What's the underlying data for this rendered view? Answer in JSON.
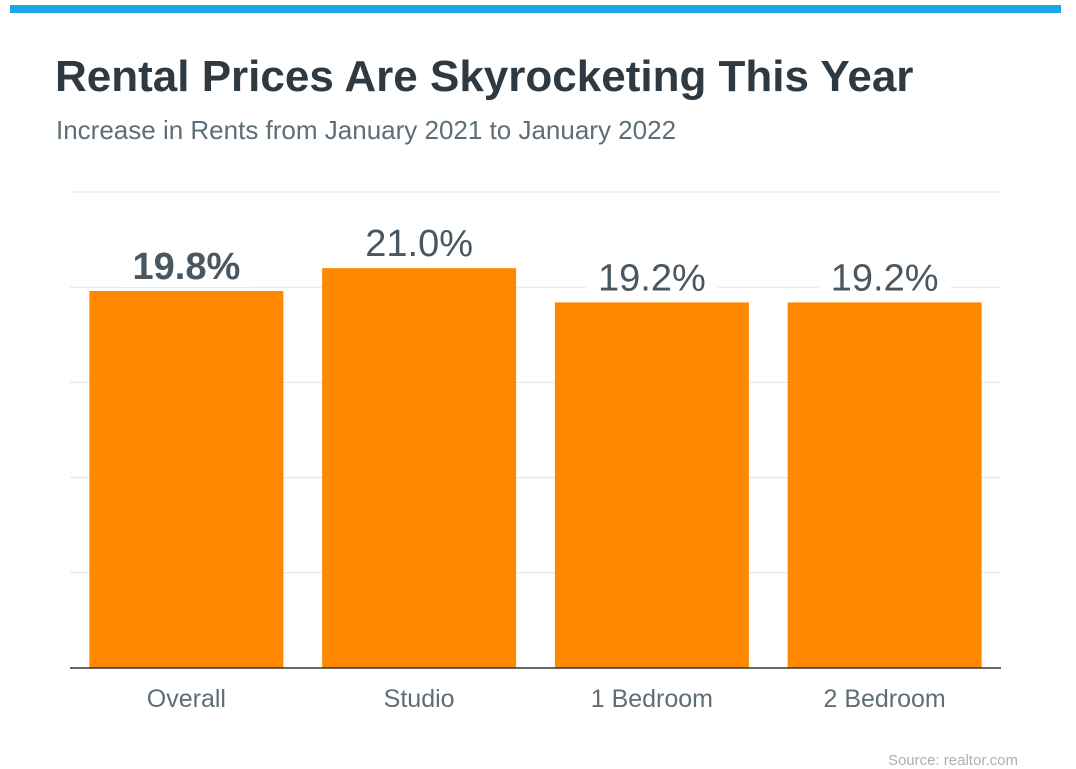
{
  "header": {
    "title": "Rental Prices Are Skyrocketing This Year",
    "subtitle": "Increase in Rents from January 2021 to January 2022",
    "accent_color": "#1aa7e6"
  },
  "footer": {
    "source": "Source: realtor.com"
  },
  "chart_data": {
    "type": "bar",
    "title": "Rental Prices Are Skyrocketing This Year",
    "subtitle": "Increase in Rents from January 2021 to January 2022",
    "categories": [
      "Overall",
      "Studio",
      "1 Bedroom",
      "2 Bedroom"
    ],
    "values": [
      19.8,
      21.0,
      19.2,
      19.2
    ],
    "data_labels": [
      "19.8%",
      "21.0%",
      "19.2%",
      "19.2%"
    ],
    "highlighted_label_index": 0,
    "xlabel": "",
    "ylabel": "",
    "ylim": [
      0,
      25
    ],
    "grid": true,
    "legend": "none",
    "bar_color": "#ff8800"
  }
}
